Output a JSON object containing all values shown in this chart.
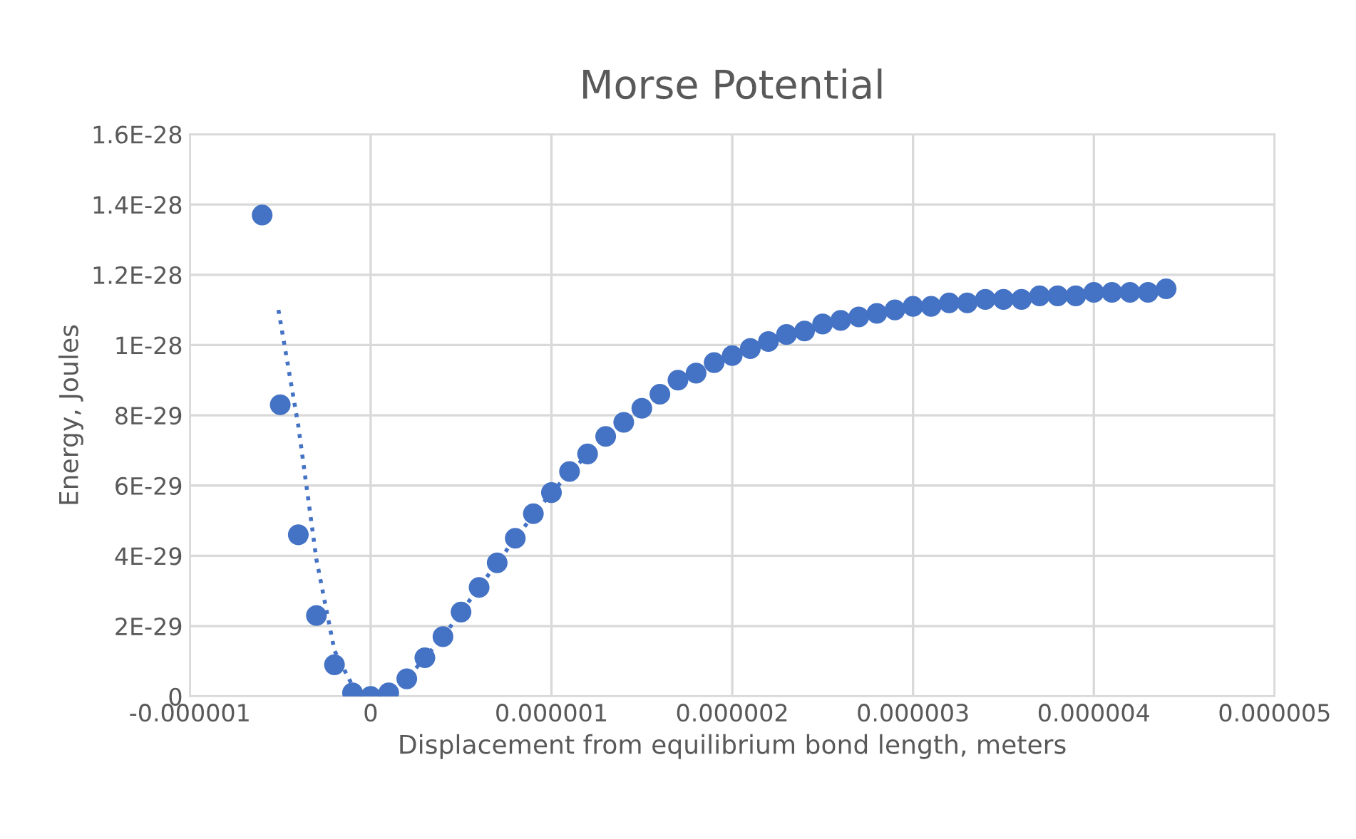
{
  "chart_data": {
    "type": "scatter",
    "title": "Morse Potential",
    "xlabel": "Displacement from equilibrium bond length, meters",
    "ylabel": "Energy, Joules",
    "x": [
      -6e-07,
      -5e-07,
      -4e-07,
      -3e-07,
      -2e-07,
      -1e-07,
      0,
      1e-07,
      2e-07,
      3e-07,
      4e-07,
      5e-07,
      6e-07,
      7e-07,
      8e-07,
      9e-07,
      1e-06,
      1.1e-06,
      1.2e-06,
      1.3e-06,
      1.4e-06,
      1.5e-06,
      1.6e-06,
      1.7e-06,
      1.8e-06,
      1.9e-06,
      2e-06,
      2.1e-06,
      2.2e-06,
      2.3e-06,
      2.4e-06,
      2.5e-06,
      2.6e-06,
      2.7e-06,
      2.8e-06,
      2.9e-06,
      3e-06,
      3.1e-06,
      3.2e-06,
      3.3e-06,
      3.4e-06,
      3.5e-06,
      3.6e-06,
      3.7e-06,
      3.8e-06,
      3.9e-06,
      4e-06,
      4.1e-06,
      4.2e-06,
      4.3e-06,
      4.4e-06
    ],
    "series": [
      {
        "color": "#4472c4",
        "marker": "circle",
        "values": [
          1.37e-28,
          8.3e-29,
          4.6e-29,
          2.3e-29,
          9e-30,
          1e-30,
          0,
          1e-30,
          5e-30,
          1.1e-29,
          1.7e-29,
          2.4e-29,
          3.1e-29,
          3.8e-29,
          4.5e-29,
          5.2e-29,
          5.8e-29,
          6.4e-29,
          6.9e-29,
          7.4e-29,
          7.8e-29,
          8.2e-29,
          8.6e-29,
          9e-29,
          9.2e-29,
          9.5e-29,
          9.7e-29,
          9.9e-29,
          1.01e-28,
          1.03e-28,
          1.04e-28,
          1.06e-28,
          1.07e-28,
          1.08e-28,
          1.09e-28,
          1.1e-28,
          1.11e-28,
          1.11e-28,
          1.12e-28,
          1.12e-28,
          1.13e-28,
          1.13e-28,
          1.13e-28,
          1.14e-28,
          1.14e-28,
          1.14e-28,
          1.15e-28,
          1.15e-28,
          1.15e-28,
          1.15e-28,
          1.16e-28
        ]
      },
      {
        "type": "line",
        "color": "#4472c4",
        "line_style": "dotted",
        "marker": "none",
        "x": [
          -5.1e-07,
          -4e-07,
          -3e-07,
          -2e-07,
          -1e-07,
          0,
          1e-07,
          2e-07,
          4e-07,
          6e-07,
          8e-07,
          1e-06,
          1.2e-06
        ],
        "values": [
          1.1e-28,
          7.7e-29,
          3.9e-29,
          1.3e-29,
          3e-30,
          0,
          1e-30,
          5e-30,
          1.7e-29,
          3.1e-29,
          4.5e-29,
          5.8e-29,
          6.9e-29
        ]
      }
    ],
    "xlim": [
      -1e-06,
      5e-06
    ],
    "xticks": [
      {
        "value": -1e-06,
        "label": "-0.000001"
      },
      0,
      {
        "value": 1e-06,
        "label": "0.000001"
      },
      {
        "value": 2e-06,
        "label": "0.000002"
      },
      {
        "value": 3e-06,
        "label": "0.000003"
      },
      {
        "value": 4e-06,
        "label": "0.000004"
      },
      {
        "value": 5e-06,
        "label": "0.000005"
      }
    ],
    "ylim": [
      0,
      1.6e-28
    ],
    "yticks": [
      0,
      {
        "value": 2e-29,
        "label": "2E-29"
      },
      {
        "value": 4e-29,
        "label": "4E-29"
      },
      {
        "value": 6e-29,
        "label": "6E-29"
      },
      {
        "value": 8e-29,
        "label": "8E-29"
      },
      {
        "value": 1e-28,
        "label": "1E-28"
      },
      {
        "value": 1.2e-28,
        "label": "1.2E-28"
      },
      {
        "value": 1.4e-28,
        "label": "1.4E-28"
      },
      {
        "value": 1.6e-28,
        "label": "1.6E-28"
      }
    ],
    "grid": true
  }
}
